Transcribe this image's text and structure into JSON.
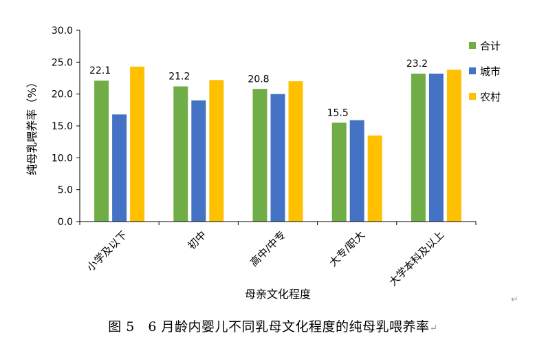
{
  "chart_data": {
    "type": "bar",
    "categories": [
      "小学及以下",
      "初中",
      "高中/中专",
      "大专/职大",
      "大学本科及以上"
    ],
    "series": [
      {
        "name": "合计",
        "values": [
          22.1,
          21.2,
          20.8,
          15.5,
          23.2
        ],
        "color": "#70AD47"
      },
      {
        "name": "城市",
        "values": [
          16.8,
          19.0,
          20.0,
          15.9,
          23.2
        ],
        "color": "#4472C4"
      },
      {
        "name": "农村",
        "values": [
          24.3,
          22.2,
          22.0,
          13.5,
          23.8
        ],
        "color": "#FFC000"
      }
    ],
    "data_labels": [
      "22.1",
      "21.2",
      "20.8",
      "15.5",
      "23.2"
    ],
    "y_ticks": [
      "0.0",
      "5.0",
      "10.0",
      "15.0",
      "20.0",
      "25.0",
      "30.0"
    ],
    "ylim": [
      0,
      30
    ],
    "xlabel": "母亲文化程度",
    "ylabel": "纯母乳喂养率（%）",
    "legend_position": "right",
    "grid": false
  },
  "caption": {
    "text": "图 5　6 月龄内婴儿不同乳母文化程度的纯母乳喂养率",
    "mark": "↵"
  },
  "paragraph_mark": "↵"
}
